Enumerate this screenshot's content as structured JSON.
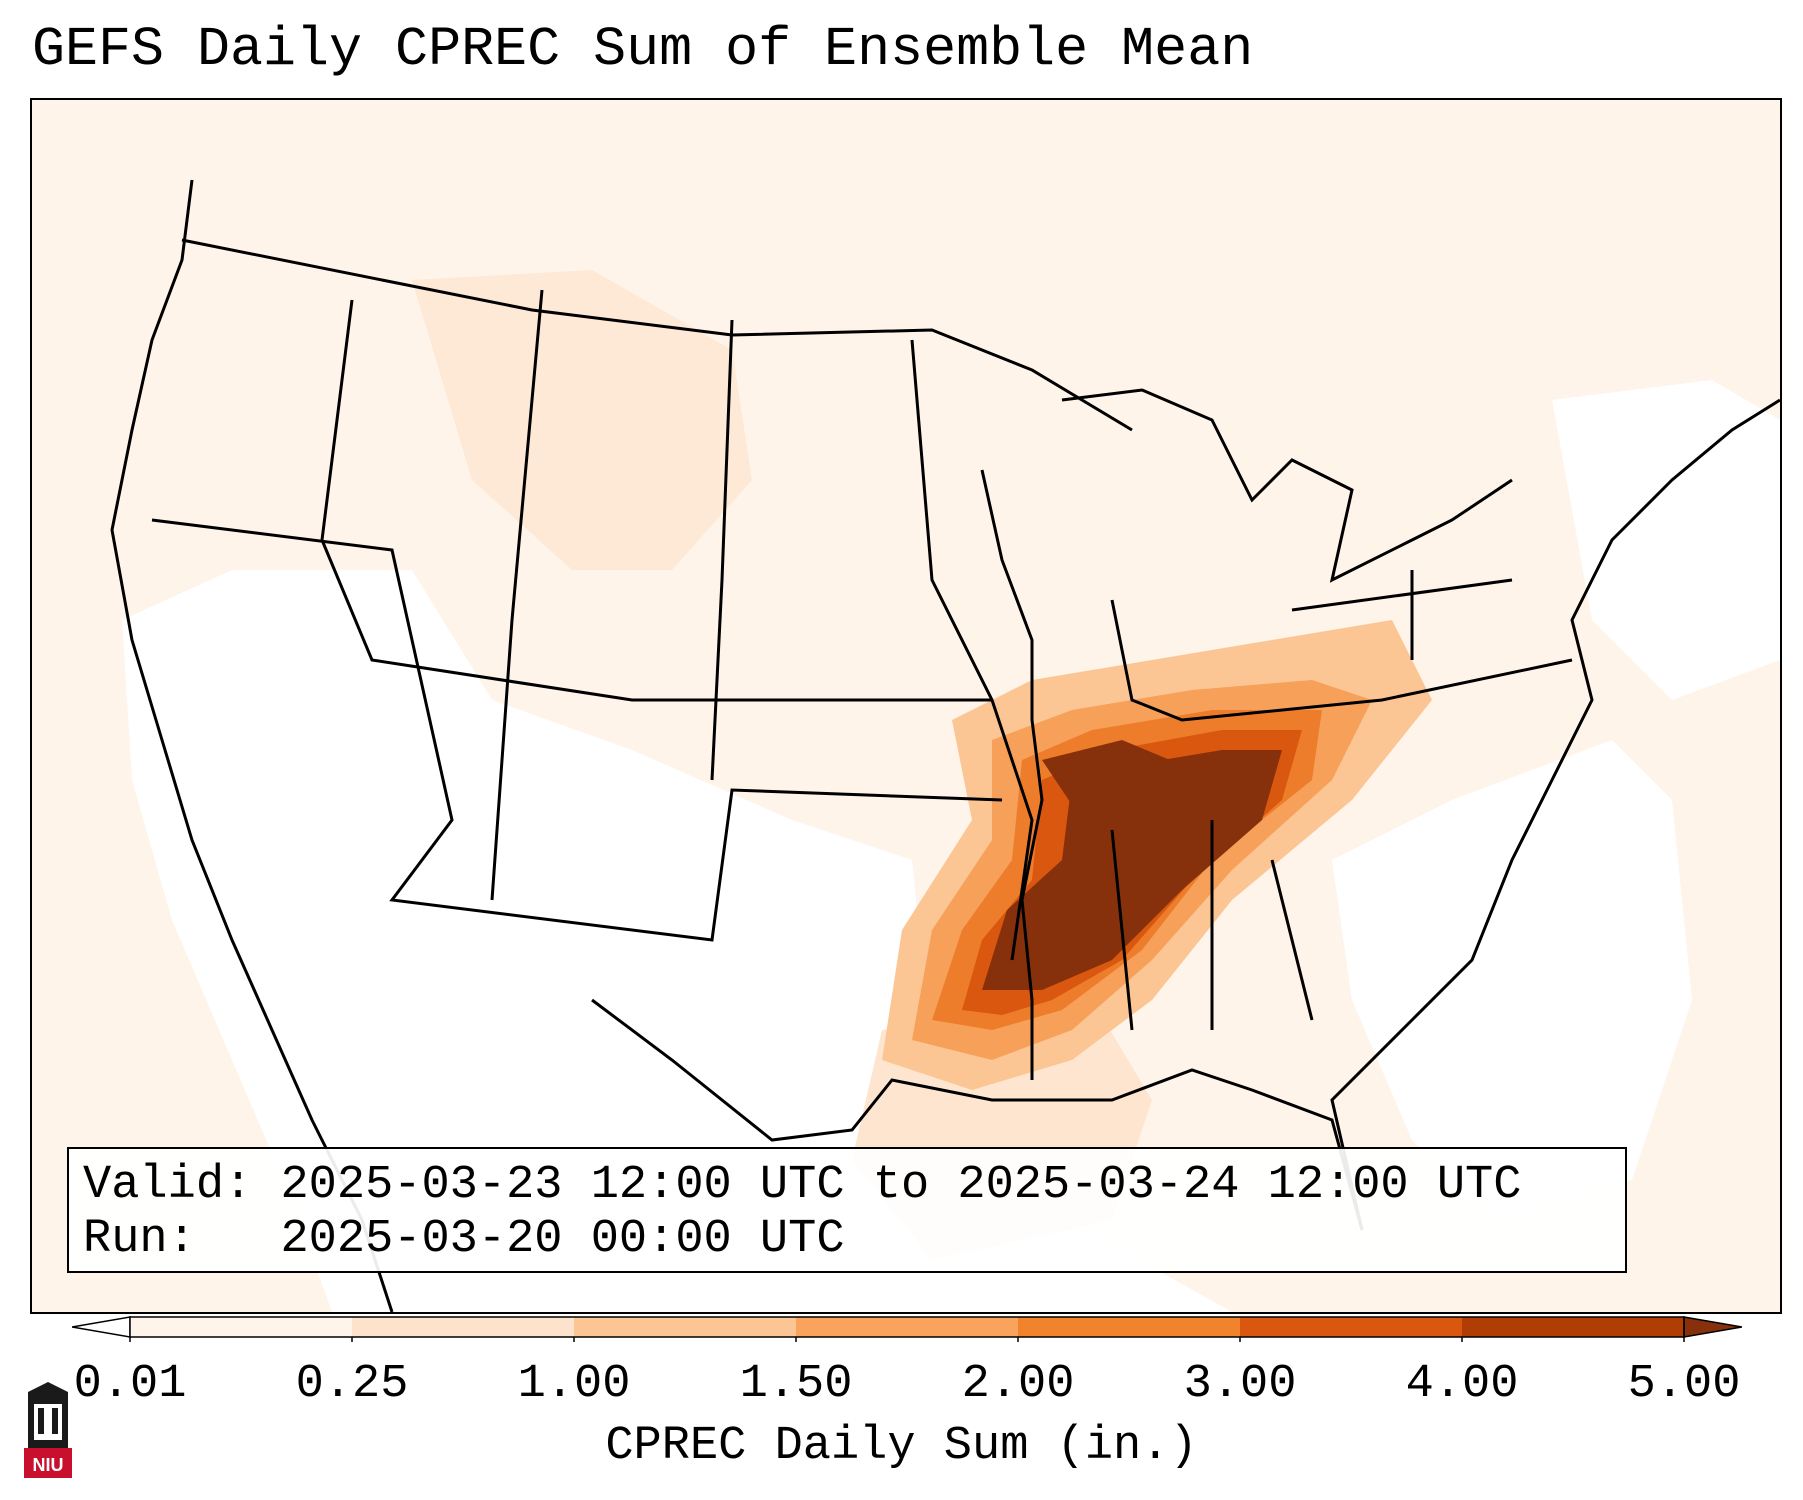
{
  "title": "GEFS Daily CPREC Sum of Ensemble Mean",
  "info": {
    "valid_label": "Valid:",
    "valid_text": "2025-03-23 12:00 UTC to 2025-03-24 12:00 UTC",
    "run_label": "Run:",
    "run_text": "2025-03-20 00:00 UTC"
  },
  "colorbar": {
    "label": "CPREC Daily Sum (in.)",
    "ticks": [
      "0.01",
      "0.25",
      "1.00",
      "1.50",
      "2.00",
      "3.00",
      "4.00",
      "5.00"
    ],
    "colors": [
      "#fff4ea",
      "#fde3cc",
      "#fbc694",
      "#f9a35c",
      "#f2832d",
      "#d9570f",
      "#b03d04"
    ],
    "extend_low_color": "#ffffff",
    "extend_high_color": "#86300c"
  },
  "logo": {
    "text": "NIU",
    "colors": {
      "red": "#c8102e",
      "black": "#1a1a1a"
    }
  },
  "map": {
    "type": "precipitation-map",
    "region": "Continental United States",
    "max_region": "Lower Mississippi / Tennessee Valley",
    "colors": {
      "light": "#fdf1e5",
      "light2": "#fde5cf",
      "mid1": "#fbc694",
      "mid2": "#f7a05a",
      "mid3": "#ee7d2b",
      "mid4": "#d9570f",
      "max": "#86300c"
    }
  }
}
